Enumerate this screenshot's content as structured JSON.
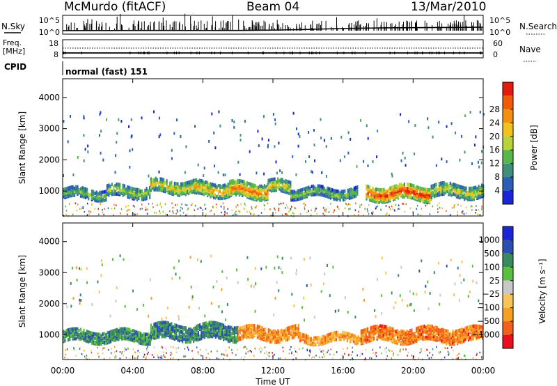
{
  "header": {
    "station": "McMurdo (fitACF)",
    "beam": "Beam 04",
    "date": "13/Mar/2010"
  },
  "top_panels": {
    "nsky_label": "N.Sky",
    "nsky_ticks": [
      "10^5",
      "10^0"
    ],
    "nsearch_label": "N.Search",
    "nsearch_ticks": [
      "10^5",
      "10^0"
    ],
    "freq_label": "Freq.",
    "freq_unit": "[MHz]",
    "freq_ticks": [
      "18",
      "8"
    ],
    "nave_label": "Nave",
    "nave_ticks": [
      "60",
      "0"
    ],
    "cpid_label": "CPID",
    "cpid_value": "normal (fast) 151"
  },
  "chart_data": [
    {
      "type": "heatmap",
      "name": "power",
      "ylabel": "Slant Range [km]",
      "ylim": [
        200,
        4600
      ],
      "yticks": [
        "1000",
        "2000",
        "3000",
        "4000"
      ],
      "xlim": [
        "00:00",
        "24:00"
      ],
      "colorbar_label": "Power [dB]",
      "colorbar_ticks": [
        "4",
        "8",
        "12",
        "16",
        "20",
        "24",
        "28"
      ],
      "colorscale": [
        "#1a25d6",
        "#2a5fb5",
        "#3f8f7a",
        "#56b84a",
        "#b8d23a",
        "#f2c21a",
        "#f29010",
        "#f05a0a",
        "#e41b0a"
      ],
      "bands": [
        {
          "start": 0.0,
          "end": 2.5,
          "center": 980,
          "width": 300,
          "level": 0.38
        },
        {
          "start": 2.5,
          "end": 5.0,
          "center": 1050,
          "width": 360,
          "level": 0.42
        },
        {
          "start": 5.0,
          "end": 7.5,
          "center": 1200,
          "width": 380,
          "level": 0.55
        },
        {
          "start": 7.5,
          "end": 9.5,
          "center": 1120,
          "width": 420,
          "level": 0.62
        },
        {
          "start": 9.5,
          "end": 11.7,
          "center": 1080,
          "width": 460,
          "level": 0.72
        },
        {
          "start": 11.7,
          "end": 13.0,
          "center": 1180,
          "width": 380,
          "level": 0.55
        },
        {
          "start": 13.0,
          "end": 16.8,
          "center": 1000,
          "width": 280,
          "level": 0.4
        },
        {
          "start": 17.3,
          "end": 21.0,
          "center": 1000,
          "width": 440,
          "level": 0.85
        },
        {
          "start": 21.0,
          "end": 24.0,
          "center": 1060,
          "width": 380,
          "level": 0.5
        }
      ]
    },
    {
      "type": "heatmap",
      "name": "velocity",
      "ylabel": "Slant Range [km]",
      "ylim": [
        200,
        4600
      ],
      "yticks": [
        "1000",
        "2000",
        "3000",
        "4000"
      ],
      "xlim": [
        "00:00",
        "24:00"
      ],
      "xticks": [
        "00:00",
        "04:00",
        "08:00",
        "12:00",
        "16:00",
        "20:00",
        "00:00"
      ],
      "xlabel": "Time UT",
      "colorbar_label": "Velocity [m s⁻¹]",
      "colorbar_ticks": [
        "1000",
        "500",
        "100",
        "25",
        "−25",
        "−100",
        "−500",
        "−1000"
      ],
      "colorscale": [
        "#e8101a",
        "#f2601a",
        "#f5a020",
        "#f7c45a",
        "#c8c8c8",
        "#5ac040",
        "#3a8a60",
        "#2a4fb0",
        "#1a25d6"
      ],
      "bands": [
        {
          "start": 0.0,
          "end": 5.0,
          "center": 1000,
          "width": 320,
          "level": 0.72
        },
        {
          "start": 5.0,
          "end": 10.0,
          "center": 1150,
          "width": 480,
          "level": 0.74
        },
        {
          "start": 10.0,
          "end": 13.5,
          "center": 1100,
          "width": 400,
          "level": 0.25
        },
        {
          "start": 13.5,
          "end": 17.0,
          "center": 950,
          "width": 260,
          "level": 0.3
        },
        {
          "start": 17.0,
          "end": 24.0,
          "center": 1050,
          "width": 420,
          "level": 0.22
        }
      ]
    }
  ]
}
